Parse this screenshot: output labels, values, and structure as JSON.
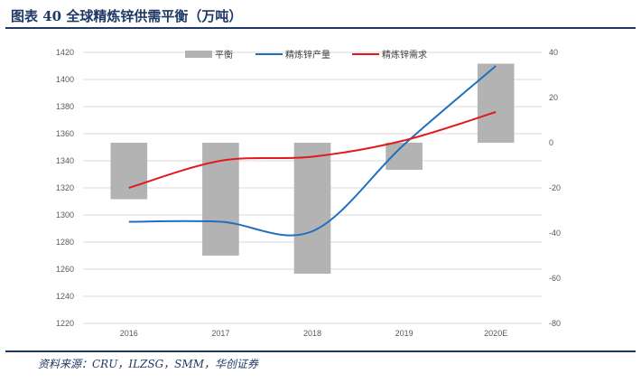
{
  "figure": {
    "title": "图表 40   全球精炼锌供需平衡（万吨）",
    "source": "资料来源：CRU，ILZSG，SMM，华创证券"
  },
  "chart_data": {
    "type": "bar",
    "categories": [
      "2016",
      "2017",
      "2018",
      "2019",
      "2020E"
    ],
    "series": [
      {
        "name": "平衡",
        "type": "bar",
        "axis": "right",
        "color": "#b3b3b3",
        "values": [
          -25,
          -50,
          -58,
          -12,
          35
        ]
      },
      {
        "name": "精炼锌产量",
        "type": "line",
        "axis": "left",
        "color": "#1f6fbf",
        "values": [
          1295,
          1295,
          1288,
          1352,
          1410
        ]
      },
      {
        "name": "精炼锌需求",
        "type": "line",
        "axis": "left",
        "color": "#e31a1c",
        "values": [
          1320,
          1340,
          1343,
          1355,
          1376
        ]
      }
    ],
    "y_left": {
      "min": 1220,
      "max": 1420,
      "step": 20
    },
    "y_right": {
      "min": -80,
      "max": 40,
      "step": 20
    },
    "legend_position": "top",
    "grid": true
  }
}
